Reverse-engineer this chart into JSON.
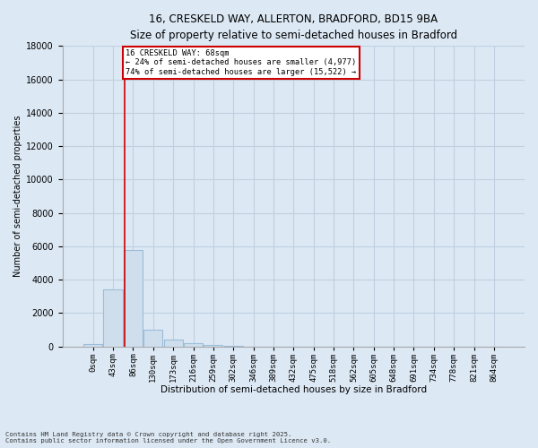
{
  "title_line1": "16, CRESKELD WAY, ALLERTON, BRADFORD, BD15 9BA",
  "title_line2": "Size of property relative to semi-detached houses in Bradford",
  "xlabel": "Distribution of semi-detached houses by size in Bradford",
  "ylabel": "Number of semi-detached properties",
  "footnote_line1": "Contains HM Land Registry data © Crown copyright and database right 2025.",
  "footnote_line2": "Contains public sector information licensed under the Open Government Licence v3.0.",
  "bar_labels": [
    "0sqm",
    "43sqm",
    "86sqm",
    "130sqm",
    "173sqm",
    "216sqm",
    "259sqm",
    "302sqm",
    "346sqm",
    "389sqm",
    "432sqm",
    "475sqm",
    "518sqm",
    "562sqm",
    "605sqm",
    "648sqm",
    "691sqm",
    "734sqm",
    "778sqm",
    "821sqm",
    "864sqm"
  ],
  "bar_values": [
    150,
    3400,
    5800,
    1000,
    400,
    180,
    70,
    20,
    5,
    2,
    1,
    0,
    0,
    0,
    0,
    0,
    0,
    0,
    0,
    0,
    0
  ],
  "bar_color": "#cfdeed",
  "bar_edge_color": "#9bbdd8",
  "grid_color": "#c0d0e0",
  "background_color": "#dce8f4",
  "annotation_text": "16 CRESKELD WAY: 68sqm\n← 24% of semi-detached houses are smaller (4,977)\n74% of semi-detached houses are larger (15,522) →",
  "annotation_box_color": "#ffffff",
  "annotation_box_edge_color": "#cc0000",
  "red_line_color": "#cc0000",
  "red_line_x": 1.58,
  "ylim": [
    0,
    18000
  ],
  "yticks": [
    0,
    2000,
    4000,
    6000,
    8000,
    10000,
    12000,
    14000,
    16000,
    18000
  ],
  "num_bins": 21
}
